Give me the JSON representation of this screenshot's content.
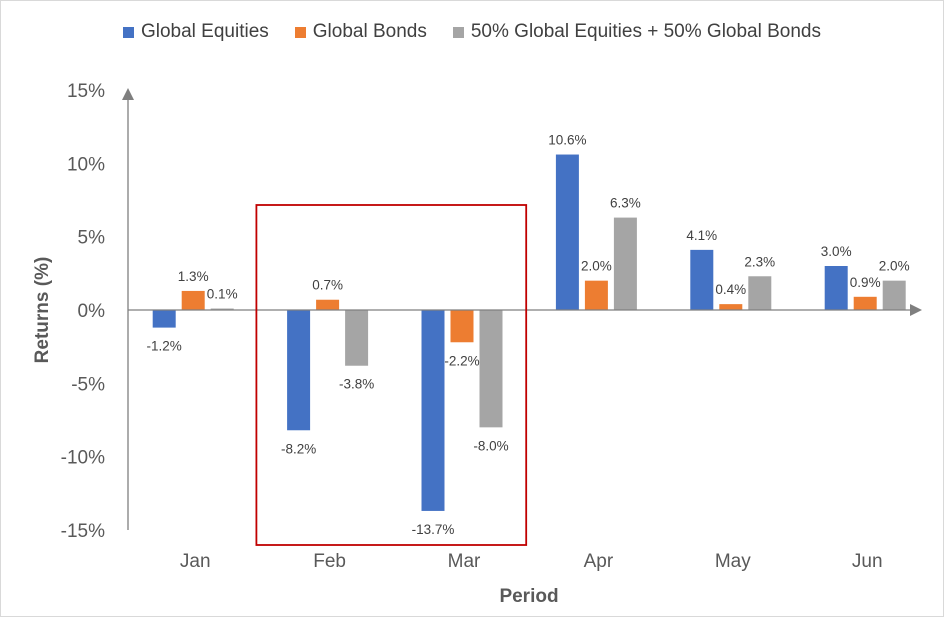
{
  "chart_data": {
    "type": "bar",
    "title": "",
    "xlabel": "Period",
    "ylabel": "Returns (%)",
    "categories": [
      "Jan",
      "Feb",
      "Mar",
      "Apr",
      "May",
      "Jun"
    ],
    "ylim": [
      -15,
      15
    ],
    "yticks": [
      15,
      10,
      5,
      0,
      -5,
      -10,
      -15
    ],
    "ytick_labels": [
      "15%",
      "10%",
      "5%",
      "0%",
      "-5%",
      "-10%",
      "-15%"
    ],
    "legend_position": "top",
    "grid": false,
    "series": [
      {
        "name": "Global Equities",
        "color": "#4472C4",
        "values": [
          -1.2,
          -8.2,
          -13.7,
          10.6,
          4.1,
          3.0
        ],
        "labels": [
          "-1.2%",
          "-8.2%",
          "-13.7%",
          "10.6%",
          "4.1%",
          "3.0%"
        ]
      },
      {
        "name": "Global Bonds",
        "color": "#ED7D31",
        "values": [
          1.3,
          0.7,
          -2.2,
          2.0,
          0.4,
          0.9
        ],
        "labels": [
          "1.3%",
          "0.7%",
          "-2.2%",
          "2.0%",
          "0.4%",
          "0.9%"
        ]
      },
      {
        "name": "50% Global Equities + 50% Global Bonds",
        "color": "#A5A5A5",
        "values": [
          0.1,
          -3.8,
          -8.0,
          6.3,
          2.3,
          2.0
        ],
        "labels": [
          "0.1%",
          "-3.8%",
          "-8.0%",
          "6.3%",
          "2.3%",
          "2.0%"
        ]
      }
    ],
    "annotations": [
      {
        "type": "highlight-box",
        "categories": [
          "Feb",
          "Mar"
        ],
        "color": "#C00000"
      }
    ]
  }
}
